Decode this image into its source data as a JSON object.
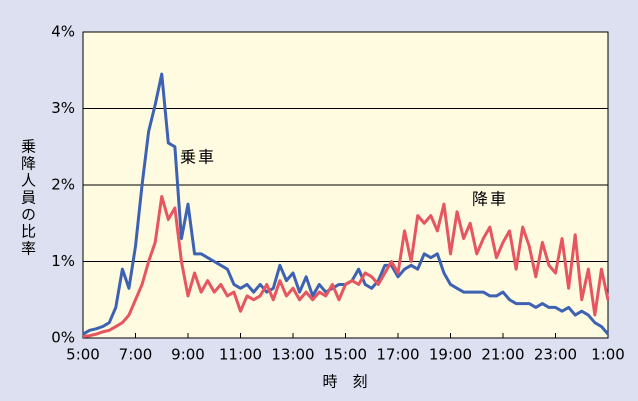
{
  "chart_data": {
    "type": "line",
    "y_label": "乗降人員の比率",
    "x_label": "時　刻",
    "x": [
      5,
      5.25,
      5.5,
      5.75,
      6,
      6.25,
      6.5,
      6.75,
      7,
      7.25,
      7.5,
      7.75,
      8,
      8.25,
      8.5,
      8.75,
      9,
      9.25,
      9.5,
      9.75,
      10,
      10.25,
      10.5,
      10.75,
      11,
      11.25,
      11.5,
      11.75,
      12,
      12.25,
      12.5,
      12.75,
      13,
      13.25,
      13.5,
      13.75,
      14,
      14.25,
      14.5,
      14.75,
      15,
      15.25,
      15.5,
      15.75,
      16,
      16.25,
      16.5,
      16.75,
      17,
      17.25,
      17.5,
      17.75,
      18,
      18.25,
      18.5,
      18.75,
      19,
      19.25,
      19.5,
      19.75,
      20,
      20.25,
      20.5,
      20.75,
      21,
      21.25,
      21.5,
      21.75,
      22,
      22.25,
      22.5,
      22.75,
      23,
      23.25,
      23.5,
      23.75,
      24,
      24.25,
      24.5,
      24.75,
      25
    ],
    "series": [
      {
        "name": "乗車",
        "color": "#3d62b3",
        "values": [
          0.05,
          0.1,
          0.12,
          0.15,
          0.2,
          0.4,
          0.9,
          0.65,
          1.2,
          2.0,
          2.7,
          3.05,
          3.45,
          2.55,
          2.5,
          1.3,
          1.75,
          1.1,
          1.1,
          1.05,
          1.0,
          0.95,
          0.9,
          0.7,
          0.65,
          0.7,
          0.6,
          0.7,
          0.6,
          0.65,
          0.95,
          0.75,
          0.85,
          0.6,
          0.8,
          0.55,
          0.7,
          0.6,
          0.65,
          0.7,
          0.7,
          0.75,
          0.9,
          0.7,
          0.65,
          0.75,
          0.95,
          0.95,
          0.8,
          0.9,
          0.95,
          0.9,
          1.1,
          1.05,
          1.1,
          0.85,
          0.7,
          0.65,
          0.6,
          0.6,
          0.6,
          0.6,
          0.55,
          0.55,
          0.6,
          0.5,
          0.45,
          0.45,
          0.45,
          0.4,
          0.45,
          0.4,
          0.4,
          0.35,
          0.4,
          0.3,
          0.35,
          0.3,
          0.2,
          0.15,
          0.05
        ]
      },
      {
        "name": "降車",
        "color": "#e65560",
        "values": [
          0.02,
          0.03,
          0.05,
          0.08,
          0.1,
          0.15,
          0.2,
          0.3,
          0.5,
          0.7,
          1.0,
          1.25,
          1.85,
          1.55,
          1.7,
          1.0,
          0.55,
          0.85,
          0.6,
          0.75,
          0.6,
          0.7,
          0.55,
          0.6,
          0.35,
          0.55,
          0.5,
          0.55,
          0.7,
          0.5,
          0.75,
          0.55,
          0.65,
          0.5,
          0.6,
          0.5,
          0.6,
          0.55,
          0.7,
          0.5,
          0.7,
          0.75,
          0.7,
          0.85,
          0.8,
          0.7,
          0.85,
          1.0,
          0.85,
          1.4,
          1.0,
          1.6,
          1.5,
          1.6,
          1.4,
          1.75,
          1.1,
          1.65,
          1.3,
          1.5,
          1.1,
          1.3,
          1.45,
          1.05,
          1.25,
          1.4,
          0.9,
          1.45,
          1.2,
          0.8,
          1.25,
          0.95,
          0.85,
          1.3,
          0.65,
          1.35,
          0.5,
          0.9,
          0.3,
          0.9,
          0.5
        ]
      }
    ],
    "xlim": [
      5,
      25
    ],
    "xticks": [
      {
        "value": 5,
        "label": "5:00"
      },
      {
        "value": 7,
        "label": "7:00"
      },
      {
        "value": 9,
        "label": "9:00"
      },
      {
        "value": 11,
        "label": "11:00"
      },
      {
        "value": 13,
        "label": "13:00"
      },
      {
        "value": 15,
        "label": "15:00"
      },
      {
        "value": 17,
        "label": "17:00"
      },
      {
        "value": 19,
        "label": "19:00"
      },
      {
        "value": 21,
        "label": "21:00"
      },
      {
        "value": 23,
        "label": "23:00"
      },
      {
        "value": 25,
        "label": "1:00"
      }
    ],
    "ylim": [
      0,
      4
    ],
    "yticks": [
      {
        "value": 0,
        "label": "0%"
      },
      {
        "value": 1,
        "label": "1%"
      },
      {
        "value": 2,
        "label": "2%"
      },
      {
        "value": 3,
        "label": "3%"
      },
      {
        "value": 4,
        "label": "4%"
      }
    ],
    "grid": true
  }
}
